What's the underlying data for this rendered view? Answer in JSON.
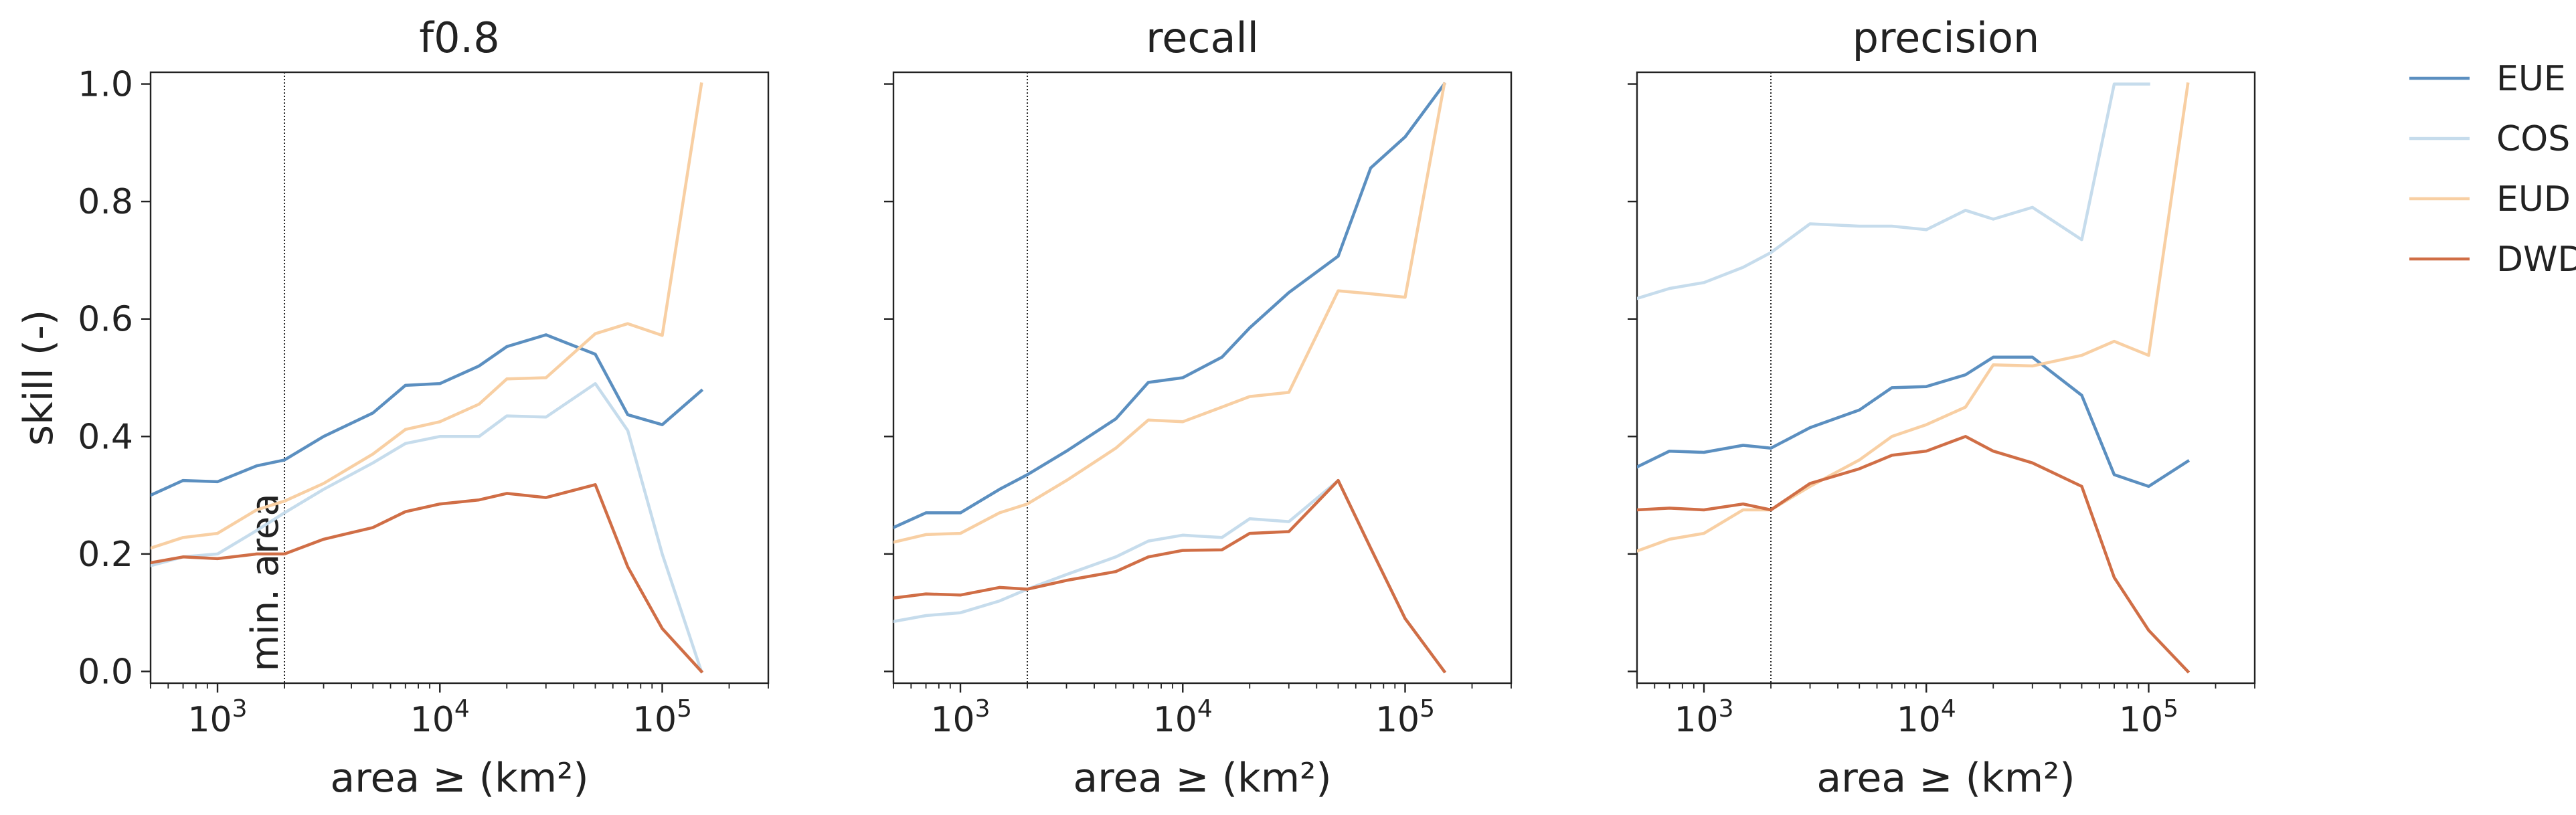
{
  "chart_data": {
    "type": "line",
    "shared": {
      "xlabel": "area ≥ (km²)",
      "ylabel": "skill (-)",
      "x_scale": "log",
      "xlim": [
        500,
        300000
      ],
      "ylim": [
        -0.02,
        1.02
      ],
      "x_ticks": [
        {
          "value": 1000,
          "base": "10",
          "exp": "3"
        },
        {
          "value": 10000,
          "base": "10",
          "exp": "4"
        },
        {
          "value": 100000,
          "base": "10",
          "exp": "5"
        }
      ],
      "y_ticks": [
        "0.0",
        "0.2",
        "0.4",
        "0.6",
        "0.8",
        "1.0"
      ],
      "x": [
        500,
        700,
        1000,
        1500,
        2000,
        3000,
        5000,
        7000,
        10000,
        15000,
        20000,
        30000,
        50000,
        70000,
        100000,
        150000
      ],
      "vline": {
        "x": 2000,
        "label": "min. area"
      },
      "legend": {
        "placement": "outside-right",
        "entries": [
          "EUE",
          "COS",
          "EUD",
          "DWD"
        ]
      },
      "colors": {
        "EUE": "#5b8fc0",
        "COS": "#c6dcec",
        "EUD": "#f8cfa3",
        "DWD": "#d06e46"
      },
      "grid": false
    },
    "panels": [
      {
        "title": "f0.8",
        "show_ylabel": true,
        "show_vline_label": true,
        "series": [
          {
            "name": "EUE",
            "values": [
              0.3,
              0.325,
              0.323,
              0.35,
              0.36,
              0.4,
              0.44,
              0.487,
              0.49,
              0.52,
              0.553,
              0.573,
              0.54,
              0.437,
              0.42,
              0.478
            ]
          },
          {
            "name": "COS",
            "values": [
              0.18,
              0.195,
              0.2,
              0.24,
              0.27,
              0.31,
              0.355,
              0.388,
              0.4,
              0.4,
              0.435,
              0.433,
              0.49,
              0.41,
              0.2,
              0.0
            ]
          },
          {
            "name": "EUD",
            "values": [
              0.21,
              0.228,
              0.235,
              0.275,
              0.29,
              0.32,
              0.37,
              0.412,
              0.425,
              0.455,
              0.498,
              0.5,
              0.575,
              0.592,
              0.572,
              1.0
            ]
          },
          {
            "name": "DWD",
            "values": [
              0.185,
              0.195,
              0.192,
              0.2,
              0.2,
              0.225,
              0.245,
              0.272,
              0.285,
              0.292,
              0.303,
              0.296,
              0.318,
              0.178,
              0.073,
              0.0
            ]
          }
        ]
      },
      {
        "title": "recall",
        "show_ylabel": false,
        "show_vline_label": false,
        "series": [
          {
            "name": "EUE",
            "values": [
              0.245,
              0.27,
              0.27,
              0.31,
              0.335,
              0.375,
              0.43,
              0.492,
              0.5,
              0.535,
              0.585,
              0.645,
              0.707,
              0.857,
              0.91,
              1.0
            ]
          },
          {
            "name": "COS",
            "values": [
              0.085,
              0.095,
              0.1,
              0.12,
              0.14,
              0.165,
              0.195,
              0.222,
              0.232,
              0.228,
              0.26,
              0.255,
              0.325,
              0.21,
              0.09,
              0.0
            ]
          },
          {
            "name": "EUD",
            "values": [
              0.22,
              0.233,
              0.235,
              0.27,
              0.285,
              0.325,
              0.38,
              0.428,
              0.425,
              0.45,
              0.468,
              0.475,
              0.648,
              0.643,
              0.637,
              1.0
            ]
          },
          {
            "name": "DWD",
            "values": [
              0.125,
              0.132,
              0.13,
              0.143,
              0.14,
              0.155,
              0.17,
              0.195,
              0.206,
              0.207,
              0.235,
              0.238,
              0.325,
              0.21,
              0.09,
              0.0
            ]
          }
        ]
      },
      {
        "title": "precision",
        "show_ylabel": false,
        "show_vline_label": false,
        "series": [
          {
            "name": "EUE",
            "values": [
              0.348,
              0.375,
              0.373,
              0.385,
              0.38,
              0.415,
              0.445,
              0.483,
              0.485,
              0.505,
              0.535,
              0.535,
              0.47,
              0.335,
              0.315,
              0.358
            ]
          },
          {
            "name": "COS",
            "values": [
              0.635,
              0.652,
              0.662,
              0.688,
              0.713,
              0.762,
              0.758,
              0.758,
              0.752,
              0.785,
              0.77,
              0.79,
              0.735,
              1.0,
              1.0,
              null
            ]
          },
          {
            "name": "EUD",
            "values": [
              0.205,
              0.225,
              0.235,
              0.275,
              0.275,
              0.315,
              0.36,
              0.4,
              0.42,
              0.45,
              0.522,
              0.52,
              0.538,
              0.562,
              0.538,
              1.0
            ]
          },
          {
            "name": "DWD",
            "values": [
              0.275,
              0.278,
              0.275,
              0.285,
              0.275,
              0.32,
              0.345,
              0.368,
              0.375,
              0.4,
              0.375,
              0.355,
              0.315,
              0.16,
              0.07,
              0.0
            ]
          }
        ]
      }
    ]
  }
}
